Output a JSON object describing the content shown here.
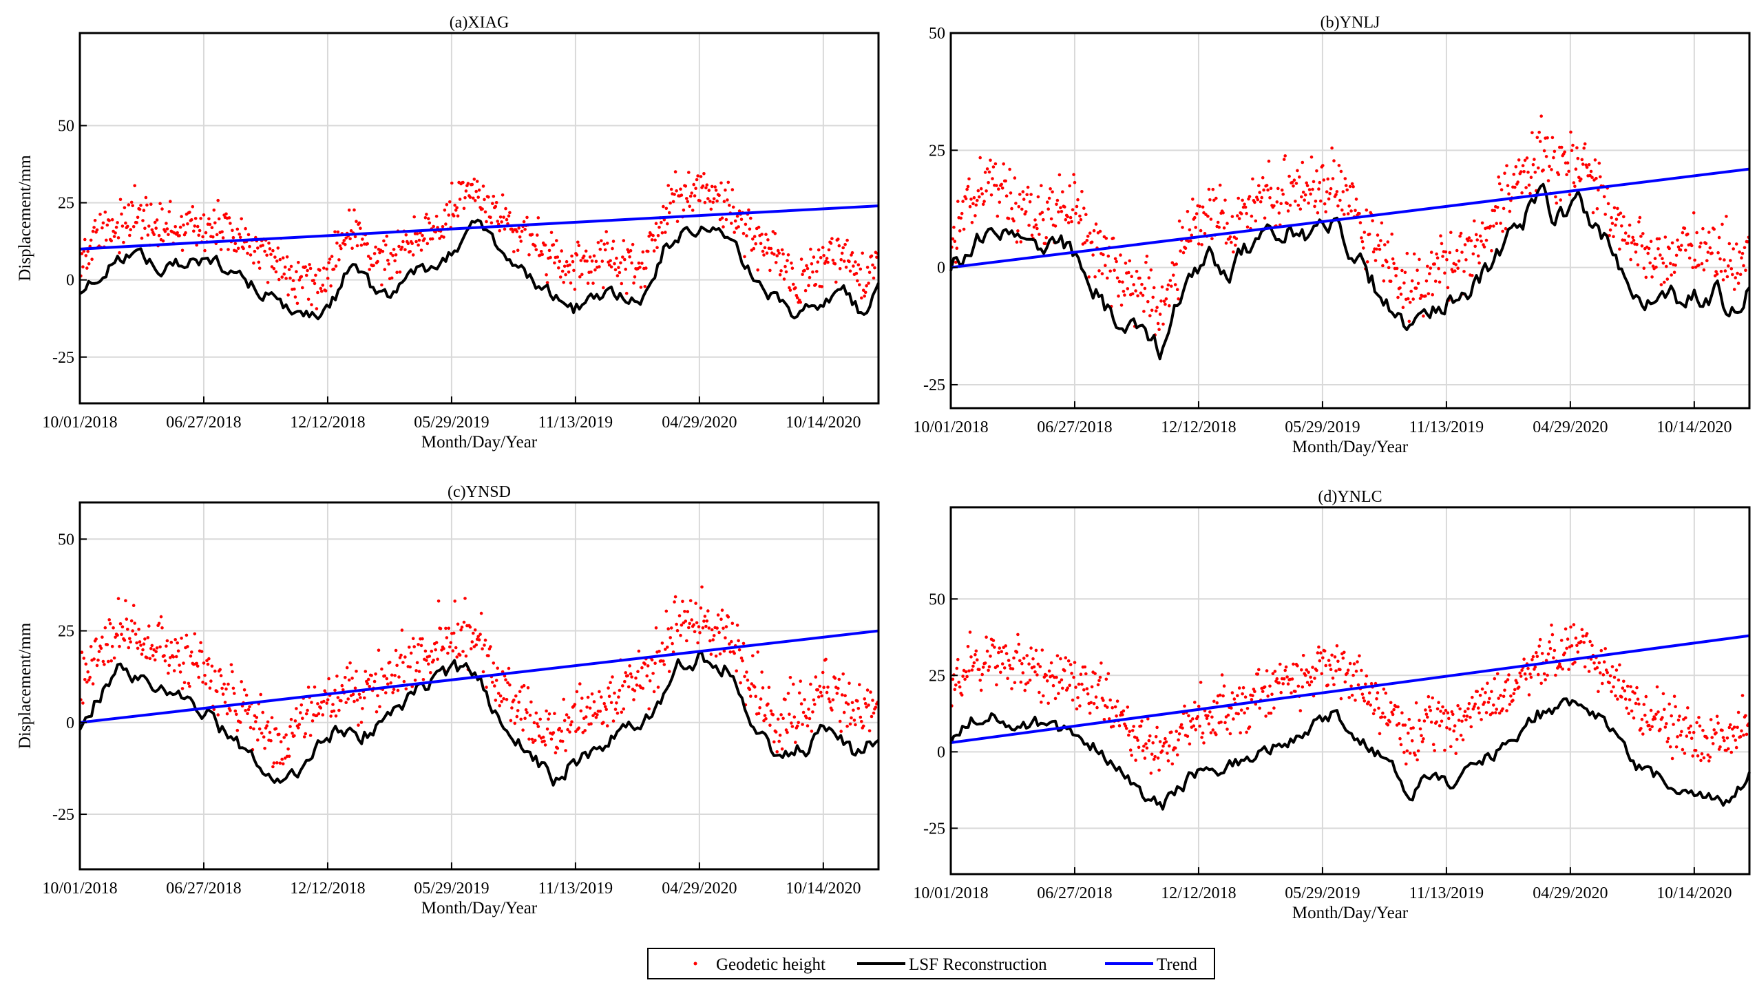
{
  "chart_data": [
    {
      "id": "a",
      "type": "scatter",
      "title": "(a)XIAG",
      "xlabel": "Month/Day/Year",
      "ylabel": "Displacement/mm",
      "xlim": [
        0,
        825
      ],
      "ylim": [
        -40,
        80
      ],
      "yticks": [
        -25,
        0,
        25,
        50
      ],
      "xticks": [
        {
          "day": 0,
          "label": "10/01/2018"
        },
        {
          "day": 128,
          "label": "06/27/2018"
        },
        {
          "day": 256,
          "label": "12/12/2018"
        },
        {
          "day": 384,
          "label": "05/29/2019"
        },
        {
          "day": 512,
          "label": "11/13/2019"
        },
        {
          "day": 640,
          "label": "04/29/2020"
        },
        {
          "day": 768,
          "label": "10/14/2020"
        }
      ],
      "trend": {
        "start": 10,
        "end": 24
      },
      "lsf_anchors": [
        [
          0,
          -5
        ],
        [
          30,
          5
        ],
        [
          60,
          9
        ],
        [
          80,
          4
        ],
        [
          110,
          6
        ],
        [
          150,
          4
        ],
        [
          180,
          -2
        ],
        [
          210,
          -8
        ],
        [
          230,
          -11
        ],
        [
          250,
          -13
        ],
        [
          265,
          -5
        ],
        [
          280,
          5
        ],
        [
          300,
          -2
        ],
        [
          320,
          -6
        ],
        [
          340,
          2
        ],
        [
          370,
          5
        ],
        [
          395,
          13
        ],
        [
          410,
          17
        ],
        [
          430,
          10
        ],
        [
          460,
          3
        ],
        [
          490,
          -6
        ],
        [
          510,
          -10
        ],
        [
          530,
          -6
        ],
        [
          550,
          -4
        ],
        [
          575,
          -8
        ],
        [
          590,
          -5
        ],
        [
          605,
          12
        ],
        [
          625,
          15
        ],
        [
          650,
          17
        ],
        [
          675,
          10
        ],
        [
          700,
          0
        ],
        [
          740,
          -12
        ],
        [
          770,
          -7
        ],
        [
          790,
          -3
        ],
        [
          810,
          -12
        ],
        [
          825,
          -3
        ]
      ],
      "geo_offset": 12,
      "geo_spread": 8
    },
    {
      "id": "b",
      "type": "scatter",
      "title": "(b)YNLJ",
      "xlabel": "Month/Day/Year",
      "ylabel": "",
      "xlim": [
        0,
        825
      ],
      "ylim": [
        -30,
        50
      ],
      "yticks": [
        -25,
        0,
        25,
        50
      ],
      "xticks": [
        {
          "day": 0,
          "label": "10/01/2018"
        },
        {
          "day": 128,
          "label": "06/27/2018"
        },
        {
          "day": 256,
          "label": "12/12/2018"
        },
        {
          "day": 384,
          "label": "05/29/2019"
        },
        {
          "day": 512,
          "label": "11/13/2019"
        },
        {
          "day": 640,
          "label": "04/29/2020"
        },
        {
          "day": 768,
          "label": "10/14/2020"
        }
      ],
      "trend": {
        "start": 0,
        "end": 21
      },
      "lsf_anchors": [
        [
          0,
          0
        ],
        [
          20,
          5
        ],
        [
          40,
          10
        ],
        [
          60,
          6
        ],
        [
          90,
          1
        ],
        [
          115,
          5
        ],
        [
          135,
          2
        ],
        [
          160,
          -8
        ],
        [
          180,
          -12
        ],
        [
          200,
          -13
        ],
        [
          215,
          -18
        ],
        [
          230,
          -10
        ],
        [
          250,
          0
        ],
        [
          270,
          2
        ],
        [
          290,
          -1
        ],
        [
          310,
          5
        ],
        [
          340,
          8
        ],
        [
          370,
          7
        ],
        [
          395,
          10
        ],
        [
          420,
          2
        ],
        [
          450,
          -8
        ],
        [
          475,
          -14
        ],
        [
          500,
          -10
        ],
        [
          530,
          -6
        ],
        [
          560,
          2
        ],
        [
          590,
          9
        ],
        [
          610,
          16
        ],
        [
          625,
          10
        ],
        [
          650,
          14
        ],
        [
          675,
          7
        ],
        [
          700,
          -3
        ],
        [
          730,
          -8
        ],
        [
          760,
          -6
        ],
        [
          790,
          -5
        ],
        [
          810,
          -10
        ],
        [
          825,
          -2
        ]
      ],
      "geo_offset": 9,
      "geo_spread": 7
    },
    {
      "id": "c",
      "type": "scatter",
      "title": "(c)YNSD",
      "xlabel": "Month/Day/Year",
      "ylabel": "Displacement/mm",
      "xlim": [
        0,
        825
      ],
      "ylim": [
        -40,
        60
      ],
      "yticks": [
        -25,
        0,
        25,
        50
      ],
      "xticks": [
        {
          "day": 0,
          "label": "10/01/2018"
        },
        {
          "day": 128,
          "label": "06/27/2018"
        },
        {
          "day": 256,
          "label": "12/12/2018"
        },
        {
          "day": 384,
          "label": "05/29/2019"
        },
        {
          "day": 512,
          "label": "11/13/2019"
        },
        {
          "day": 640,
          "label": "04/29/2020"
        },
        {
          "day": 768,
          "label": "10/14/2020"
        }
      ],
      "trend": {
        "start": 0,
        "end": 25
      },
      "lsf_anchors": [
        [
          0,
          0
        ],
        [
          20,
          8
        ],
        [
          40,
          15
        ],
        [
          70,
          9
        ],
        [
          100,
          7
        ],
        [
          130,
          3
        ],
        [
          160,
          -6
        ],
        [
          190,
          -13
        ],
        [
          210,
          -18
        ],
        [
          230,
          -12
        ],
        [
          250,
          -5
        ],
        [
          270,
          -2
        ],
        [
          290,
          -3
        ],
        [
          310,
          -1
        ],
        [
          330,
          5
        ],
        [
          360,
          10
        ],
        [
          385,
          14
        ],
        [
          410,
          13
        ],
        [
          440,
          -3
        ],
        [
          470,
          -10
        ],
        [
          490,
          -17
        ],
        [
          510,
          -10
        ],
        [
          540,
          -6
        ],
        [
          570,
          -1
        ],
        [
          600,
          5
        ],
        [
          615,
          15
        ],
        [
          640,
          18
        ],
        [
          670,
          15
        ],
        [
          695,
          0
        ],
        [
          720,
          -10
        ],
        [
          750,
          -7
        ],
        [
          770,
          -2
        ],
        [
          800,
          -8
        ],
        [
          825,
          -5
        ]
      ],
      "geo_offset": 11,
      "geo_spread": 8
    },
    {
      "id": "d",
      "type": "scatter",
      "title": "(d)YNLC",
      "xlabel": "Month/Day/Year",
      "ylabel": "",
      "xlim": [
        0,
        825
      ],
      "ylim": [
        -40,
        80
      ],
      "yticks": [
        -25,
        0,
        25,
        50
      ],
      "xticks": [
        {
          "day": 0,
          "label": "10/01/2018"
        },
        {
          "day": 128,
          "label": "06/27/2018"
        },
        {
          "day": 256,
          "label": "12/12/2018"
        },
        {
          "day": 384,
          "label": "05/29/2019"
        },
        {
          "day": 512,
          "label": "11/13/2019"
        },
        {
          "day": 640,
          "label": "04/29/2020"
        },
        {
          "day": 768,
          "label": "10/14/2020"
        }
      ],
      "trend": {
        "start": 3,
        "end": 38
      },
      "lsf_anchors": [
        [
          0,
          2
        ],
        [
          20,
          10
        ],
        [
          40,
          12
        ],
        [
          60,
          10
        ],
        [
          90,
          9
        ],
        [
          120,
          7
        ],
        [
          150,
          2
        ],
        [
          180,
          -8
        ],
        [
          200,
          -15
        ],
        [
          220,
          -17
        ],
        [
          250,
          -8
        ],
        [
          280,
          -5
        ],
        [
          310,
          -3
        ],
        [
          340,
          3
        ],
        [
          370,
          8
        ],
        [
          395,
          12
        ],
        [
          420,
          5
        ],
        [
          450,
          -3
        ],
        [
          475,
          -15
        ],
        [
          495,
          -8
        ],
        [
          520,
          -10
        ],
        [
          550,
          -2
        ],
        [
          580,
          3
        ],
        [
          605,
          13
        ],
        [
          620,
          12
        ],
        [
          650,
          17
        ],
        [
          680,
          8
        ],
        [
          710,
          -5
        ],
        [
          740,
          -10
        ],
        [
          770,
          -13
        ],
        [
          800,
          -15
        ],
        [
          825,
          -8
        ]
      ],
      "geo_offset": 18,
      "geo_spread": 9
    }
  ],
  "legend": {
    "position": "bottom-center",
    "items": [
      {
        "label": "Geodetic height",
        "kind": "dot",
        "color": "#ff0000"
      },
      {
        "label": "LSF Reconstruction",
        "kind": "line",
        "color": "#000000"
      },
      {
        "label": "Trend",
        "kind": "line",
        "color": "#0000ff"
      }
    ]
  },
  "colors": {
    "geodetic": "#ff0000",
    "lsf": "#000000",
    "trend": "#0000ff",
    "grid": "#d9d9d9"
  }
}
